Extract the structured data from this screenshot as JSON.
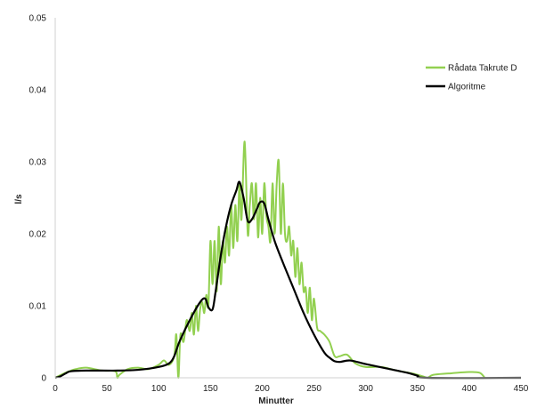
{
  "chart_data": {
    "type": "line",
    "xlabel": "Minutter",
    "ylabel": "l/s",
    "xlim": [
      0,
      450
    ],
    "ylim": [
      0,
      0.05
    ],
    "x_ticks": [
      0,
      50,
      100,
      150,
      200,
      250,
      300,
      350,
      400,
      450
    ],
    "y_ticks": [
      0,
      0.01,
      0.02,
      0.03,
      0.04,
      0.05
    ],
    "x_tick_labels": [
      "0",
      "50",
      "100",
      "150",
      "200",
      "250",
      "300",
      "350",
      "400",
      "450"
    ],
    "y_tick_labels": [
      "0",
      "0.01",
      "0.02",
      "0.03",
      "0.04",
      "0.05"
    ],
    "grid": false,
    "legend_position": "top-right",
    "series": [
      {
        "name": "Rådata Takrute D",
        "color": "#92d050",
        "points": [
          [
            0,
            0.0
          ],
          [
            10,
            0.0007
          ],
          [
            20,
            0.0012
          ],
          [
            30,
            0.0014
          ],
          [
            45,
            0.001
          ],
          [
            58,
            0.0009
          ],
          [
            60,
            0.0
          ],
          [
            62,
            0.0004
          ],
          [
            70,
            0.0012
          ],
          [
            80,
            0.0014
          ],
          [
            90,
            0.0012
          ],
          [
            100,
            0.0018
          ],
          [
            105,
            0.0024
          ],
          [
            110,
            0.0018
          ],
          [
            115,
            0.003
          ],
          [
            117,
            0.006
          ],
          [
            119,
            0.0
          ],
          [
            121,
            0.006
          ],
          [
            124,
            0.005
          ],
          [
            127,
            0.008
          ],
          [
            130,
            0.0065
          ],
          [
            132,
            0.009
          ],
          [
            134,
            0.006
          ],
          [
            136,
            0.01
          ],
          [
            138,
            0.0065
          ],
          [
            140,
            0.0095
          ],
          [
            142,
            0.0105
          ],
          [
            144,
            0.009
          ],
          [
            146,
            0.0115
          ],
          [
            148,
            0.01
          ],
          [
            150,
            0.019
          ],
          [
            152,
            0.013
          ],
          [
            154,
            0.019
          ],
          [
            156,
            0.012
          ],
          [
            158,
            0.021
          ],
          [
            160,
            0.013
          ],
          [
            162,
            0.019
          ],
          [
            164,
            0.016
          ],
          [
            166,
            0.021
          ],
          [
            168,
            0.017
          ],
          [
            170,
            0.024
          ],
          [
            172,
            0.018
          ],
          [
            174,
            0.024
          ],
          [
            176,
            0.019
          ],
          [
            178,
            0.027
          ],
          [
            180,
            0.022
          ],
          [
            183,
            0.0328
          ],
          [
            186,
            0.02
          ],
          [
            188,
            0.024
          ],
          [
            190,
            0.027
          ],
          [
            192,
            0.022
          ],
          [
            194,
            0.027
          ],
          [
            196,
            0.0195
          ],
          [
            198,
            0.025
          ],
          [
            200,
            0.02
          ],
          [
            202,
            0.027
          ],
          [
            204,
            0.0225
          ],
          [
            206,
            0.021
          ],
          [
            208,
            0.019
          ],
          [
            210,
            0.027
          ],
          [
            212,
            0.02
          ],
          [
            214,
            0.027
          ],
          [
            216,
            0.03
          ],
          [
            218,
            0.02
          ],
          [
            220,
            0.027
          ],
          [
            222,
            0.02
          ],
          [
            224,
            0.019
          ],
          [
            226,
            0.021
          ],
          [
            228,
            0.017
          ],
          [
            230,
            0.019
          ],
          [
            232,
            0.014
          ],
          [
            234,
            0.018
          ],
          [
            236,
            0.013
          ],
          [
            238,
            0.016
          ],
          [
            240,
            0.012
          ],
          [
            242,
            0.0125
          ],
          [
            244,
            0.009
          ],
          [
            246,
            0.0125
          ],
          [
            248,
            0.008
          ],
          [
            250,
            0.011
          ],
          [
            253,
            0.007
          ],
          [
            256,
            0.0065
          ],
          [
            260,
            0.006
          ],
          [
            265,
            0.005
          ],
          [
            270,
            0.003
          ],
          [
            275,
            0.003
          ],
          [
            282,
            0.0032
          ],
          [
            290,
            0.002
          ],
          [
            300,
            0.0015
          ],
          [
            315,
            0.0015
          ],
          [
            330,
            0.001
          ],
          [
            345,
            0.0006
          ],
          [
            355,
            0.0002
          ],
          [
            360,
            0.0
          ],
          [
            365,
            0.0004
          ],
          [
            380,
            0.0006
          ],
          [
            400,
            0.0008
          ],
          [
            410,
            0.0007
          ],
          [
            415,
            0.0
          ]
        ]
      },
      {
        "name": "Algoritme",
        "color": "#000000",
        "points": [
          [
            0,
            0.0
          ],
          [
            5,
            0.0002
          ],
          [
            10,
            0.0006
          ],
          [
            15,
            0.0009
          ],
          [
            30,
            0.001
          ],
          [
            60,
            0.001
          ],
          [
            80,
            0.0011
          ],
          [
            100,
            0.0015
          ],
          [
            110,
            0.002
          ],
          [
            115,
            0.003
          ],
          [
            120,
            0.005
          ],
          [
            130,
            0.008
          ],
          [
            140,
            0.0105
          ],
          [
            145,
            0.011
          ],
          [
            148,
            0.0098
          ],
          [
            152,
            0.0095
          ],
          [
            155,
            0.012
          ],
          [
            160,
            0.017
          ],
          [
            165,
            0.021
          ],
          [
            170,
            0.024
          ],
          [
            175,
            0.026
          ],
          [
            178,
            0.0272
          ],
          [
            182,
            0.025
          ],
          [
            186,
            0.0218
          ],
          [
            190,
            0.022
          ],
          [
            195,
            0.0235
          ],
          [
            198,
            0.0244
          ],
          [
            202,
            0.0242
          ],
          [
            206,
            0.022
          ],
          [
            212,
            0.019
          ],
          [
            220,
            0.016
          ],
          [
            230,
            0.0125
          ],
          [
            240,
            0.009
          ],
          [
            250,
            0.006
          ],
          [
            260,
            0.0035
          ],
          [
            265,
            0.0028
          ],
          [
            270,
            0.0023
          ],
          [
            275,
            0.0022
          ],
          [
            285,
            0.0024
          ],
          [
            300,
            0.0019
          ],
          [
            320,
            0.0013
          ],
          [
            340,
            0.0007
          ],
          [
            350,
            0.0003
          ],
          [
            360,
            0.0
          ],
          [
            450,
            0.0
          ]
        ]
      }
    ]
  }
}
